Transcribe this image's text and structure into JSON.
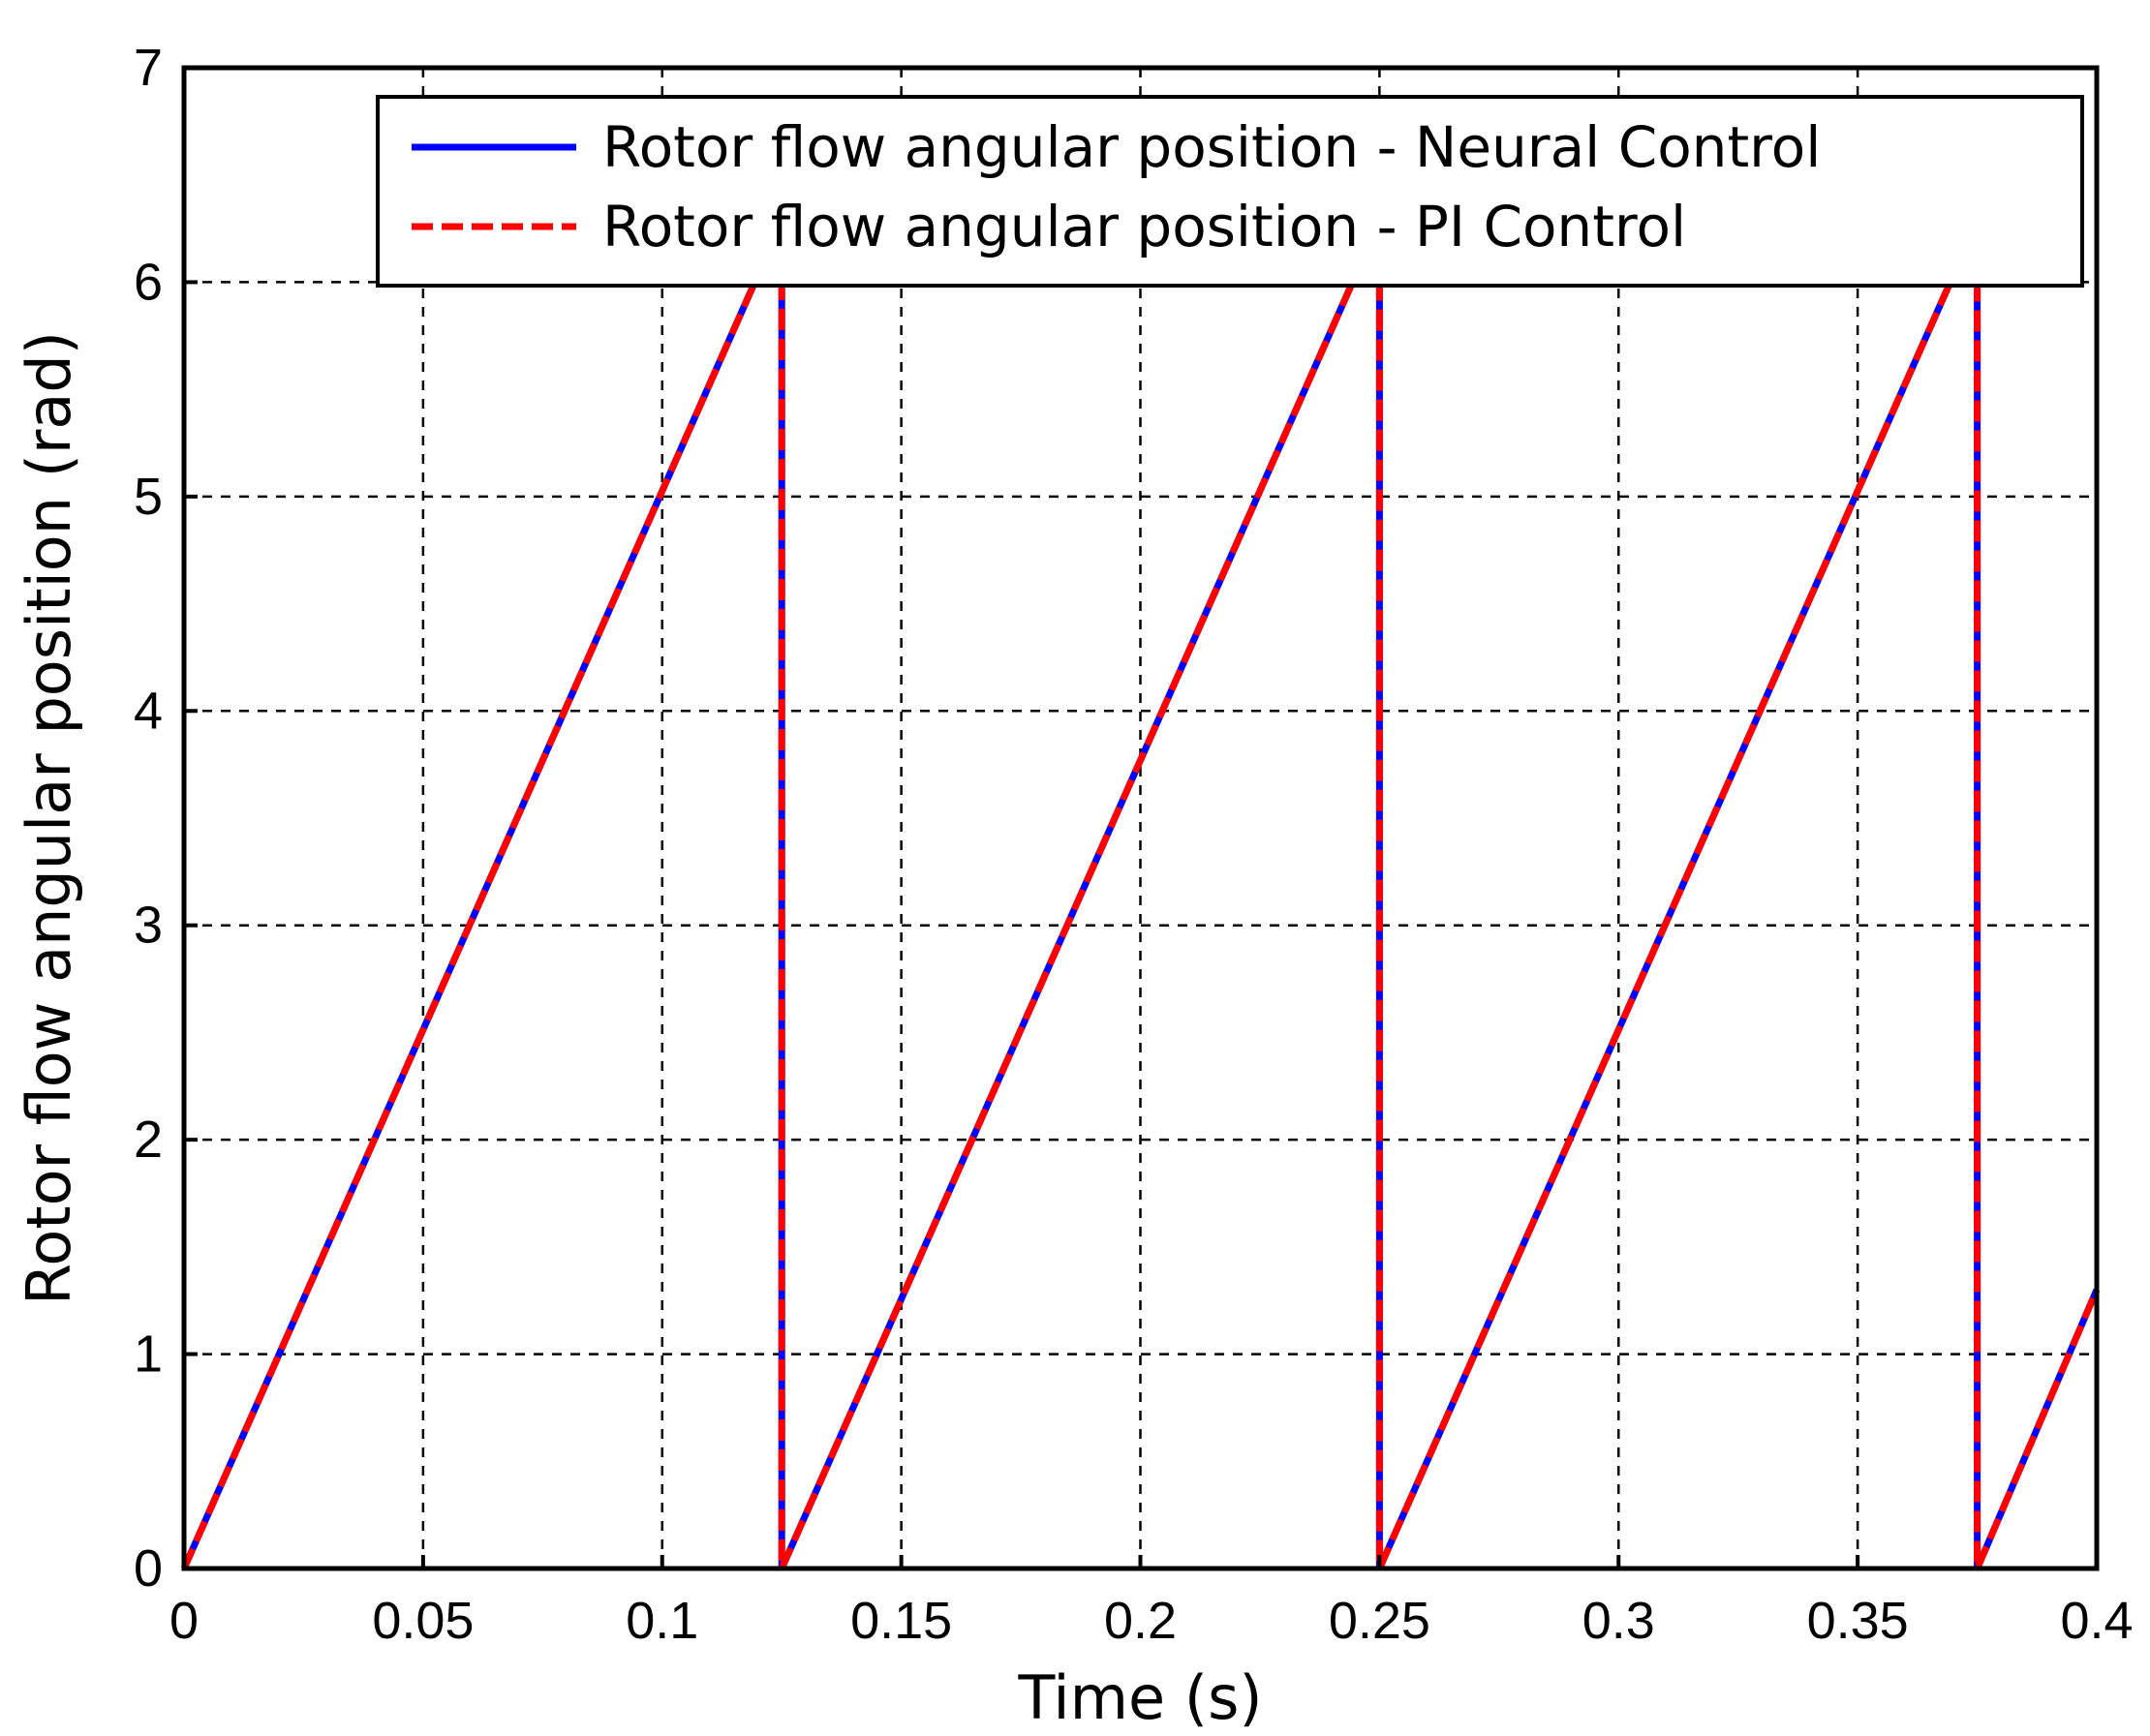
{
  "chart_data": {
    "type": "line",
    "xlabel": "Time (s)",
    "ylabel": "Rotor flow angular position (rad)",
    "xlim": [
      0,
      0.4
    ],
    "ylim": [
      0,
      7
    ],
    "xticks": [
      0,
      0.05,
      0.1,
      0.15,
      0.2,
      0.25,
      0.3,
      0.35,
      0.4
    ],
    "xtick_labels": [
      "0",
      "0.05",
      "0.1",
      "0.15",
      "0.2",
      "0.25",
      "0.3",
      "0.35",
      "0.4"
    ],
    "yticks": [
      0,
      1,
      2,
      3,
      4,
      5,
      6,
      7
    ],
    "ytick_labels": [
      "0",
      "1",
      "2",
      "3",
      "4",
      "5",
      "6",
      "7"
    ],
    "grid": true,
    "legend_position": "top-right",
    "series": [
      {
        "name": "Rotor flow angular position - Neural Control",
        "color": "#0000ff",
        "style": "solid",
        "x": [
          0,
          0.125,
          0.125,
          0.25,
          0.25,
          0.375,
          0.375,
          0.4
        ],
        "y": [
          0,
          6.283,
          0,
          6.283,
          0,
          6.283,
          0,
          1.3
        ]
      },
      {
        "name": "Rotor flow angular position - PI Control",
        "color": "#ff0000",
        "style": "dashed",
        "x": [
          0,
          0.125,
          0.125,
          0.25,
          0.25,
          0.375,
          0.375,
          0.4
        ],
        "y": [
          0,
          6.283,
          0,
          6.283,
          0,
          6.283,
          0,
          1.3
        ]
      }
    ]
  }
}
